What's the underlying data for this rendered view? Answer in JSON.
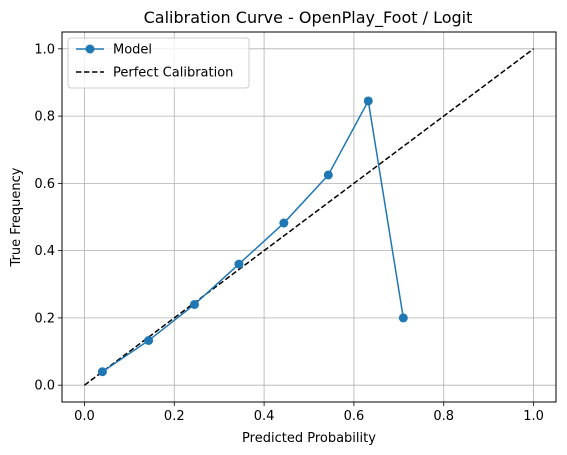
{
  "chart_data": {
    "type": "line",
    "title": "Calibration Curve - OpenPlay_Foot / Logit",
    "xlabel": "Predicted Probability",
    "ylabel": "True Frequency",
    "xlim": [
      -0.05,
      1.05
    ],
    "ylim": [
      -0.05,
      1.05
    ],
    "xticks": [
      "0.0",
      "0.2",
      "0.4",
      "0.6",
      "0.8",
      "1.0"
    ],
    "yticks": [
      "0.0",
      "0.2",
      "0.4",
      "0.6",
      "0.8",
      "1.0"
    ],
    "grid": true,
    "legend_position": "top-left",
    "series": [
      {
        "name": "Model",
        "style": "solid-with-markers",
        "color": "#1f77b4",
        "x": [
          0.04,
          0.143,
          0.245,
          0.344,
          0.444,
          0.543,
          0.632,
          0.71
        ],
        "y": [
          0.04,
          0.133,
          0.24,
          0.36,
          0.482,
          0.625,
          0.845,
          0.2
        ]
      },
      {
        "name": "Perfect Calibration",
        "style": "dashed",
        "color": "#000000",
        "x": [
          0.0,
          1.0
        ],
        "y": [
          0.0,
          1.0
        ]
      }
    ]
  }
}
